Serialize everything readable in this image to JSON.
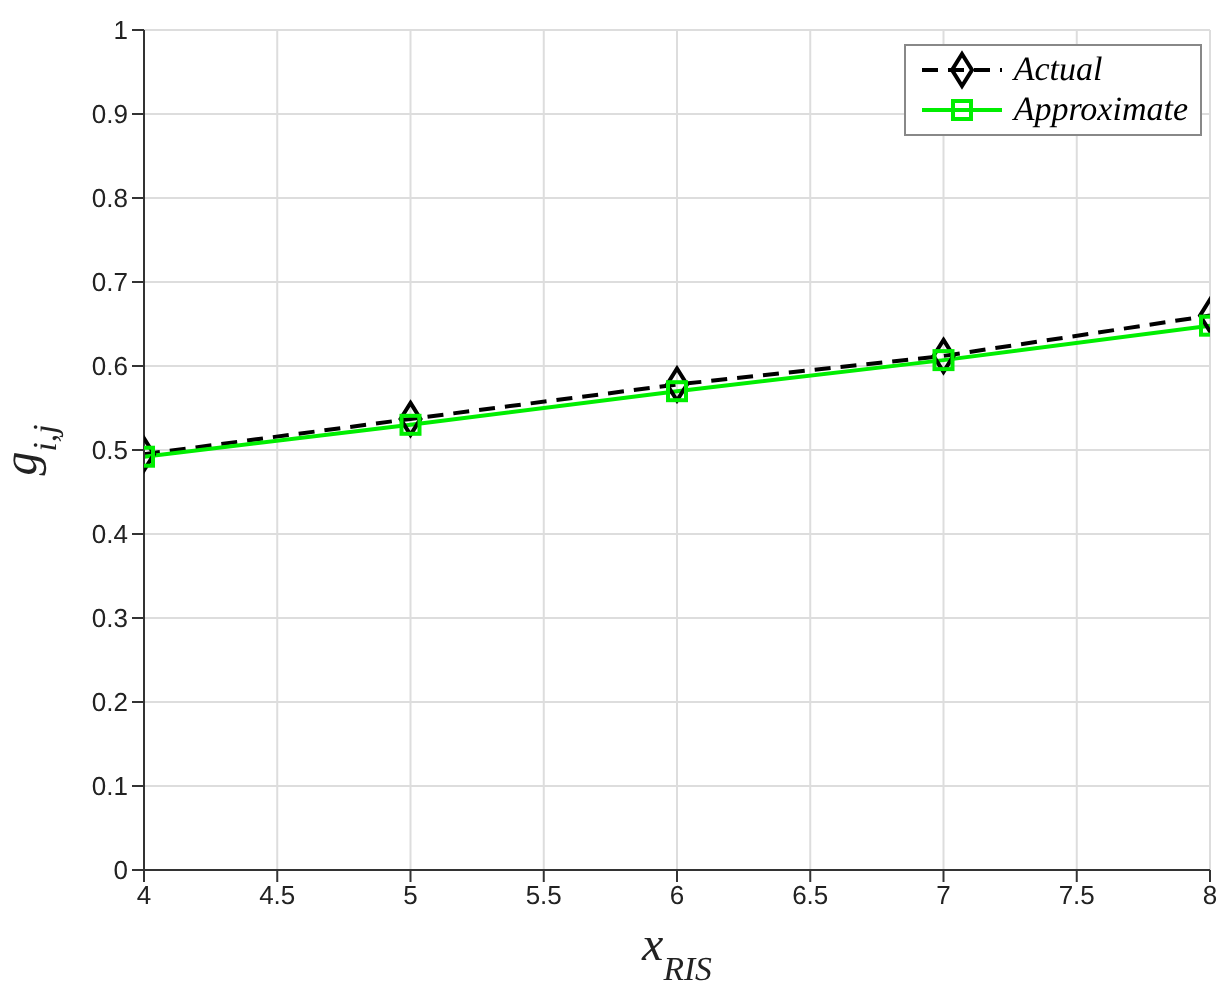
{
  "chart_data": {
    "type": "line",
    "xlabel": "x$_{RIS}$",
    "ylabel": "g$_{i,j}$",
    "x": [
      4,
      5,
      6,
      7,
      8
    ],
    "series": [
      {
        "name": "Actual",
        "color": "#000000",
        "values": [
          0.495,
          0.537,
          0.578,
          0.612,
          0.66
        ],
        "marker": "diamond",
        "line_style": "dashed"
      },
      {
        "name": "Approximate",
        "color": "#00ee00",
        "values": [
          0.492,
          0.53,
          0.57,
          0.607,
          0.648
        ],
        "marker": "square",
        "line_style": "solid"
      }
    ],
    "xlim": [
      4,
      8
    ],
    "xticks": [
      4,
      4.5,
      5,
      5.5,
      6,
      6.5,
      7,
      7.5,
      8
    ],
    "ylim": [
      0,
      1
    ],
    "yticks": [
      0,
      0.1,
      0.2,
      0.3,
      0.4,
      0.5,
      0.6,
      0.7,
      0.8,
      0.9,
      1
    ],
    "grid": true,
    "legend": "top right"
  }
}
